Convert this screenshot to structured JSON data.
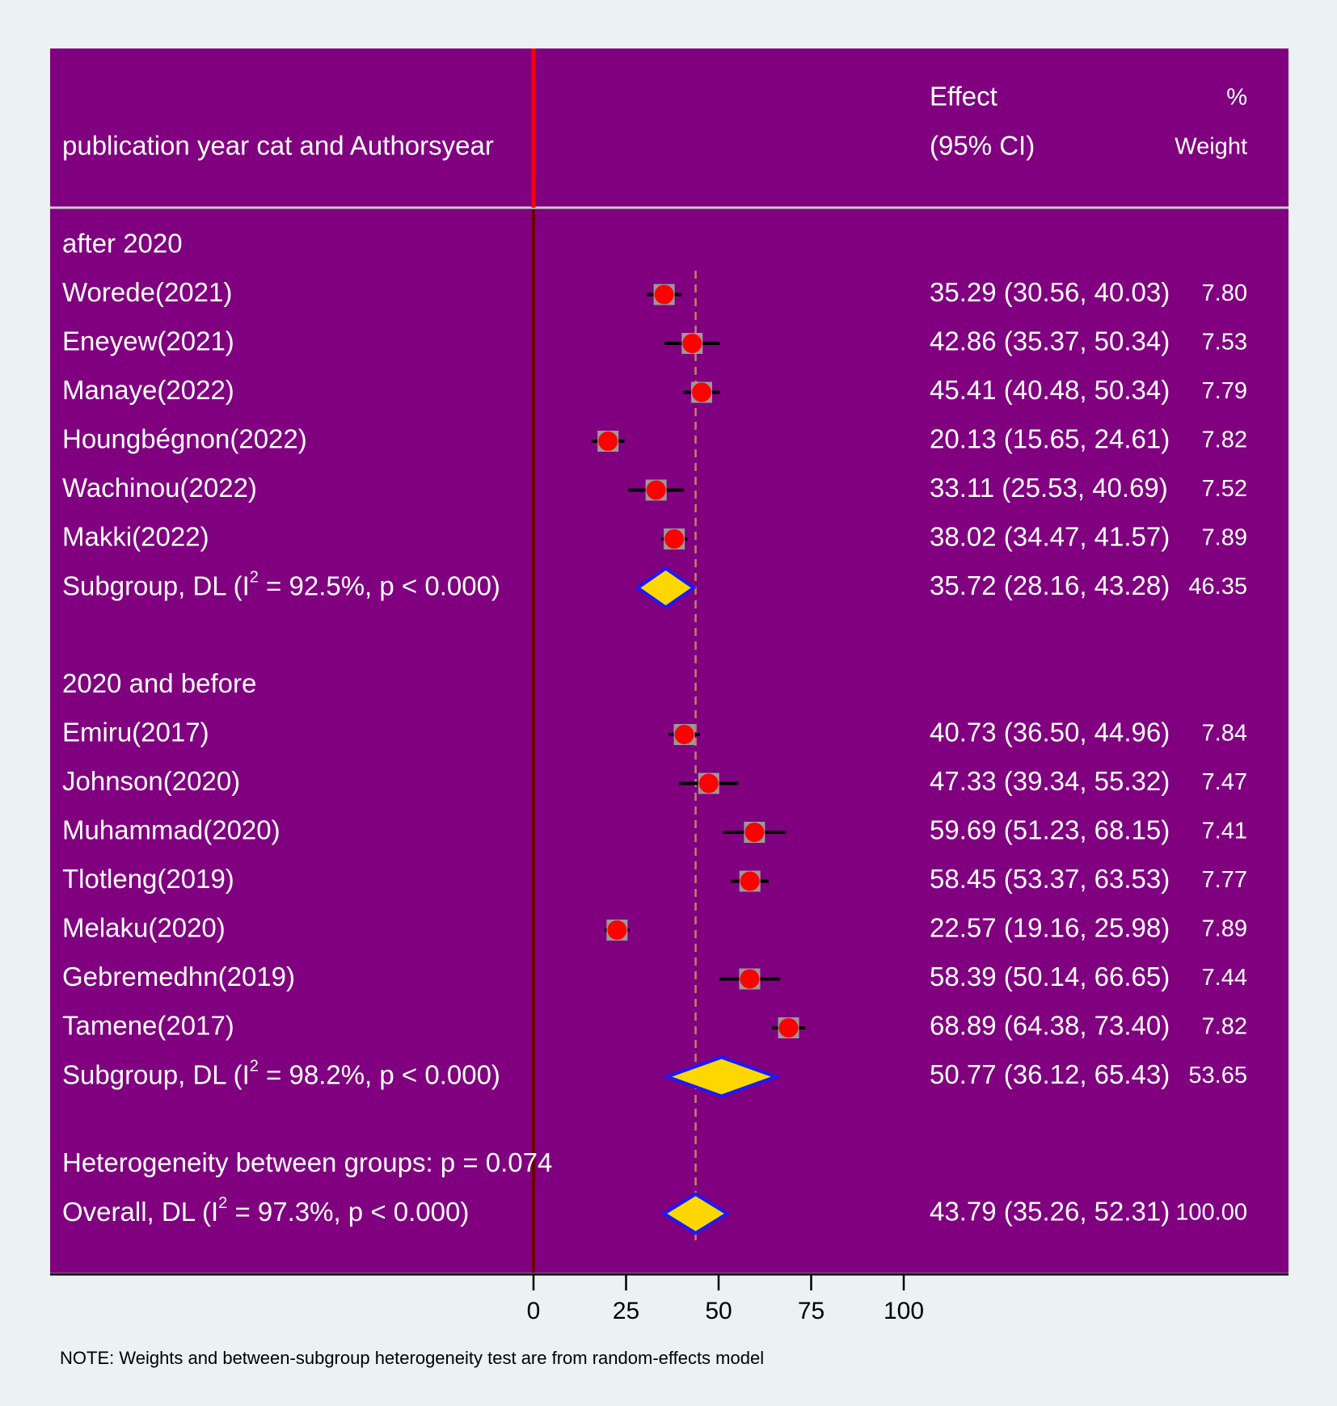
{
  "chart_data": {
    "type": "forest",
    "header": {
      "study_label": "publication year cat and Authorsyear",
      "effect_line1": "Effect",
      "effect_line2": "(95% CI)",
      "weight_line1": "%",
      "weight_line2": "Weight"
    },
    "xaxis": {
      "ticks": [
        0,
        25,
        50,
        75,
        100
      ],
      "range": [
        0,
        100
      ]
    },
    "null_line": 0,
    "overall_line": 43.79,
    "groups": [
      {
        "name": "after 2020",
        "studies": [
          {
            "label": "Worede(2021)",
            "es": 35.29,
            "lo": 30.56,
            "hi": 40.03,
            "ci_text": "35.29 (30.56, 40.03)",
            "weight": "7.80"
          },
          {
            "label": "Eneyew(2021)",
            "es": 42.86,
            "lo": 35.37,
            "hi": 50.34,
            "ci_text": "42.86 (35.37, 50.34)",
            "weight": "7.53"
          },
          {
            "label": "Manaye(2022)",
            "es": 45.41,
            "lo": 40.48,
            "hi": 50.34,
            "ci_text": "45.41 (40.48, 50.34)",
            "weight": "7.79"
          },
          {
            "label": "Houngbégnon(2022)",
            "es": 20.13,
            "lo": 15.65,
            "hi": 24.61,
            "ci_text": "20.13 (15.65, 24.61)",
            "weight": "7.82"
          },
          {
            "label": "Wachinou(2022)",
            "es": 33.11,
            "lo": 25.53,
            "hi": 40.69,
            "ci_text": "33.11 (25.53, 40.69)",
            "weight": "7.52"
          },
          {
            "label": "Makki(2022)",
            "es": 38.02,
            "lo": 34.47,
            "hi": 41.57,
            "ci_text": "38.02 (34.47, 41.57)",
            "weight": "7.89"
          }
        ],
        "subgroup": {
          "label_prefix": "Subgroup, DL (I",
          "label_sup": "2",
          "label_suffix": " = 92.5%, p < 0.000)",
          "es": 35.72,
          "lo": 28.16,
          "hi": 43.28,
          "ci_text": "35.72 (28.16, 43.28)",
          "weight": "46.35"
        }
      },
      {
        "name": "2020 and before",
        "studies": [
          {
            "label": "Emiru(2017)",
            "es": 40.73,
            "lo": 36.5,
            "hi": 44.96,
            "ci_text": "40.73 (36.50, 44.96)",
            "weight": "7.84"
          },
          {
            "label": "Johnson(2020)",
            "es": 47.33,
            "lo": 39.34,
            "hi": 55.32,
            "ci_text": "47.33 (39.34, 55.32)",
            "weight": "7.47"
          },
          {
            "label": "Muhammad(2020)",
            "es": 59.69,
            "lo": 51.23,
            "hi": 68.15,
            "ci_text": "59.69 (51.23, 68.15)",
            "weight": "7.41"
          },
          {
            "label": "Tlotleng(2019)",
            "es": 58.45,
            "lo": 53.37,
            "hi": 63.53,
            "ci_text": "58.45 (53.37, 63.53)",
            "weight": "7.77"
          },
          {
            "label": "Melaku(2020)",
            "es": 22.57,
            "lo": 19.16,
            "hi": 25.98,
            "ci_text": "22.57 (19.16, 25.98)",
            "weight": "7.89"
          },
          {
            "label": "Gebremedhn(2019)",
            "es": 58.39,
            "lo": 50.14,
            "hi": 66.65,
            "ci_text": "58.39 (50.14, 66.65)",
            "weight": "7.44"
          },
          {
            "label": "Tamene(2017)",
            "es": 68.89,
            "lo": 64.38,
            "hi": 73.4,
            "ci_text": "68.89 (64.38, 73.40)",
            "weight": "7.82"
          }
        ],
        "subgroup": {
          "label_prefix": "Subgroup, DL (I",
          "label_sup": "2",
          "label_suffix": " = 98.2%, p < 0.000)",
          "es": 50.77,
          "lo": 36.12,
          "hi": 65.43,
          "ci_text": "50.77 (36.12, 65.43)",
          "weight": "53.65"
        }
      }
    ],
    "heterogeneity_text": "Heterogeneity between groups: p = 0.074",
    "overall": {
      "label_prefix": "Overall, DL (I",
      "label_sup": "2",
      "label_suffix": " = 97.3%, p < 0.000)",
      "es": 43.79,
      "lo": 35.26,
      "hi": 52.31,
      "ci_text": "43.79 (35.26, 52.31)",
      "weight": "100.00"
    },
    "note": "NOTE: Weights and between-subgroup heterogeneity test are from random-effects model",
    "colors": {
      "panel": "#800080",
      "background": "#eaf2f2",
      "null_line": "#ff0000",
      "overall_line": "#c0806a",
      "marker": "#ff0000",
      "ci": "#000000",
      "diamond_fill": "#ffd700",
      "diamond_stroke": "#1a1aff",
      "text": "#ffffff"
    }
  }
}
